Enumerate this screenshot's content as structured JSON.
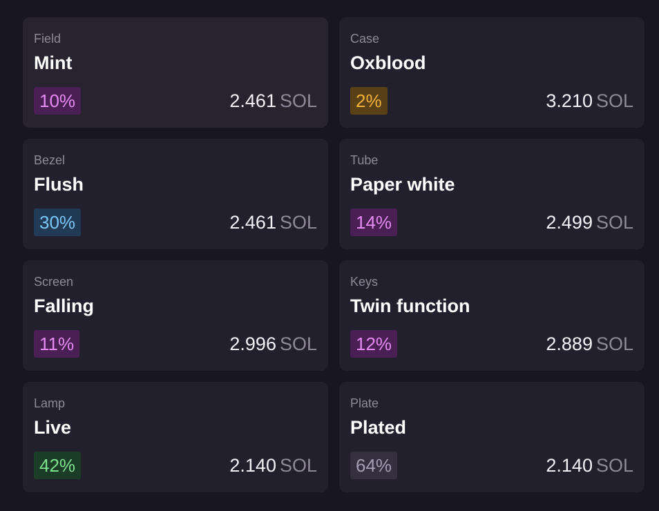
{
  "traits": [
    {
      "type": "Field",
      "value": "Mint",
      "rarity": "10%",
      "rarity_color": "#e58cf2",
      "rarity_bg": "#4a1f54",
      "price": "2.461",
      "unit": "SOL"
    },
    {
      "type": "Case",
      "value": "Oxblood",
      "rarity": "2%",
      "rarity_color": "#f2b23c",
      "rarity_bg": "#5a4016",
      "price": "3.210",
      "unit": "SOL"
    },
    {
      "type": "Bezel",
      "value": "Flush",
      "rarity": "30%",
      "rarity_color": "#7cc6f5",
      "rarity_bg": "#213b57",
      "price": "2.461",
      "unit": "SOL"
    },
    {
      "type": "Tube",
      "value": "Paper white",
      "rarity": "14%",
      "rarity_color": "#e58cf2",
      "rarity_bg": "#4a1f54",
      "price": "2.499",
      "unit": "SOL"
    },
    {
      "type": "Screen",
      "value": "Falling",
      "rarity": "11%",
      "rarity_color": "#e58cf2",
      "rarity_bg": "#4a1f54",
      "price": "2.996",
      "unit": "SOL"
    },
    {
      "type": "Keys",
      "value": "Twin function",
      "rarity": "12%",
      "rarity_color": "#e58cf2",
      "rarity_bg": "#4a1f54",
      "price": "2.889",
      "unit": "SOL"
    },
    {
      "type": "Lamp",
      "value": "Live",
      "rarity": "42%",
      "rarity_color": "#7fe08e",
      "rarity_bg": "#1b3d28",
      "price": "2.140",
      "unit": "SOL"
    },
    {
      "type": "Plate",
      "value": "Plated",
      "rarity": "64%",
      "rarity_color": "#a59fb3",
      "rarity_bg": "#35303f",
      "price": "2.140",
      "unit": "SOL"
    }
  ]
}
